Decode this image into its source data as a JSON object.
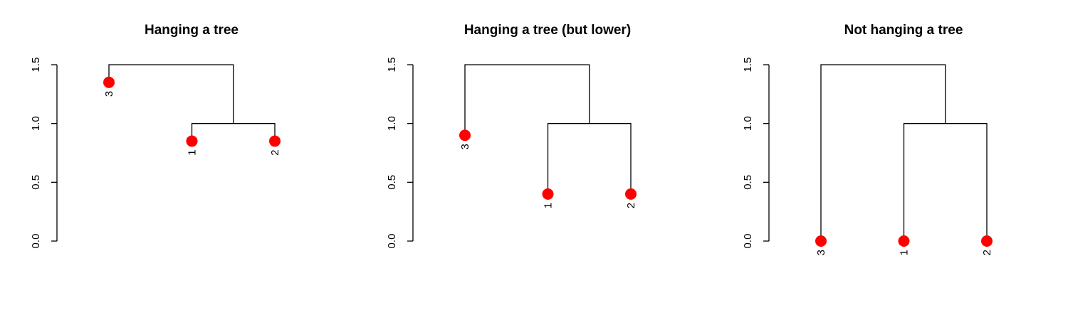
{
  "chart_data": [
    {
      "type": "dendrogram",
      "title": "Hanging a tree",
      "ylim": [
        0,
        1.5
      ],
      "yticks": [
        0,
        0.5,
        1,
        1.5
      ],
      "ytick_labels": [
        "0.0",
        "0.5",
        "1.0",
        "1.5"
      ],
      "leaf_order": [
        "3",
        "1",
        "2"
      ],
      "merges": [
        {
          "children": [
            "1",
            "2"
          ],
          "height": 1.0
        },
        {
          "children": [
            "3",
            "m1"
          ],
          "height": 1.5
        }
      ],
      "leaf_point_heights": {
        "3": 1.35,
        "1": 0.85,
        "2": 0.85
      },
      "point_color": "#ff0000"
    },
    {
      "type": "dendrogram",
      "title": "Hanging a tree (but lower)",
      "ylim": [
        0,
        1.5
      ],
      "yticks": [
        0,
        0.5,
        1,
        1.5
      ],
      "ytick_labels": [
        "0.0",
        "0.5",
        "1.0",
        "1.5"
      ],
      "leaf_order": [
        "3",
        "1",
        "2"
      ],
      "merges": [
        {
          "children": [
            "1",
            "2"
          ],
          "height": 1.0
        },
        {
          "children": [
            "3",
            "m1"
          ],
          "height": 1.5
        }
      ],
      "leaf_point_heights": {
        "3": 0.9,
        "1": 0.4,
        "2": 0.4
      },
      "point_color": "#ff0000"
    },
    {
      "type": "dendrogram",
      "title": "Not hanging a tree",
      "ylim": [
        0,
        1.5
      ],
      "yticks": [
        0,
        0.5,
        1,
        1.5
      ],
      "ytick_labels": [
        "0.0",
        "0.5",
        "1.0",
        "1.5"
      ],
      "leaf_order": [
        "3",
        "1",
        "2"
      ],
      "merges": [
        {
          "children": [
            "1",
            "2"
          ],
          "height": 1.0
        },
        {
          "children": [
            "3",
            "m1"
          ],
          "height": 1.5
        }
      ],
      "leaf_point_heights": {
        "3": 0,
        "1": 0,
        "2": 0
      },
      "point_color": "#ff0000"
    }
  ]
}
